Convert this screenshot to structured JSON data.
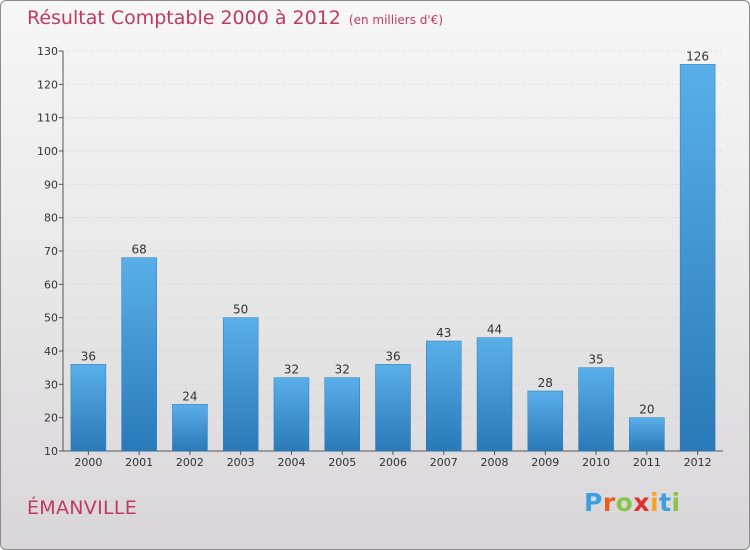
{
  "title": "Résultat Comptable 2000 à 2012",
  "subtitle": "(en milliers d'€)",
  "commune": "ÉMANVILLE",
  "logo": {
    "letters": [
      "P",
      "r",
      "o",
      "x",
      "i",
      "t",
      "i"
    ],
    "colors": [
      "#3aa0e0",
      "#e85e1f",
      "#8bc34a",
      "#e02f2f",
      "#f4a623",
      "#3aa0e0",
      "#8bc34a"
    ]
  },
  "colors": {
    "bar_light": "#5aafe9",
    "bar_dark": "#2a79b8",
    "title": "#c0395f"
  },
  "chart_data": {
    "type": "bar",
    "title": "Résultat Comptable 2000 à 2012",
    "ylabel": "en milliers d'€",
    "categories": [
      "2000",
      "2001",
      "2002",
      "2003",
      "2004",
      "2005",
      "2006",
      "2007",
      "2008",
      "2009",
      "2010",
      "2011",
      "2012"
    ],
    "values": [
      36,
      68,
      24,
      50,
      32,
      32,
      36,
      43,
      44,
      28,
      35,
      20,
      126
    ],
    "ylim": [
      10,
      130
    ],
    "yticks": [
      10,
      20,
      30,
      40,
      50,
      60,
      70,
      80,
      90,
      100,
      110,
      120,
      130
    ]
  }
}
